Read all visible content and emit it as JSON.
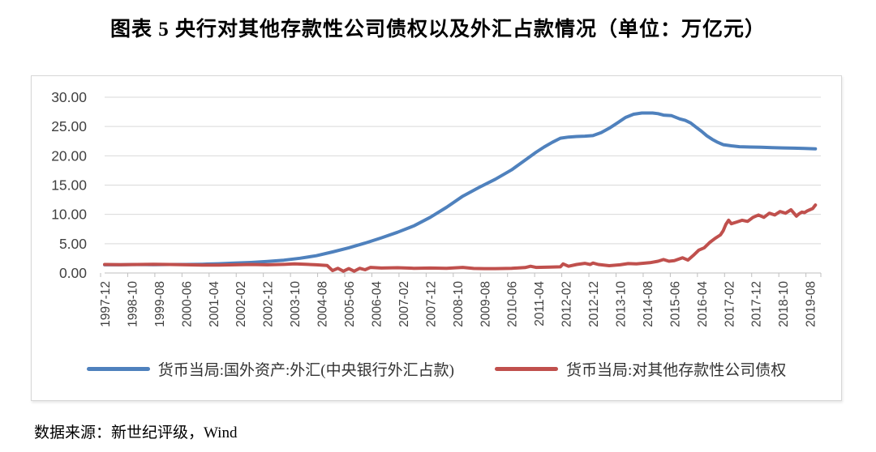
{
  "title": "图表 5  央行对其他存款性公司债权以及外汇占款情况（单位：万亿元）",
  "source_note": "数据来源：新世纪评级，Wind",
  "colors": {
    "series_fx_blue": "#4f81bd",
    "series_claims_red": "#c0504d",
    "gridline": "#d9d9d9",
    "axis_line": "#bfbfbf",
    "axis_label": "#404040"
  },
  "chart_data": {
    "type": "line",
    "title": "图表 5  央行对其他存款性公司债权以及外汇占款情况（单位：万亿元）",
    "xlabel": "",
    "ylabel": "",
    "unit": "万亿元",
    "ylim": [
      0,
      30
    ],
    "ytick_step": 5,
    "ytick_labels": [
      "0.00",
      "5.00",
      "10.00",
      "15.00",
      "20.00",
      "25.00",
      "30.00"
    ],
    "grid": "horizontal",
    "legend_position": "bottom",
    "x_axis_type": "monthly-categories",
    "x_start_label": "1997-12",
    "x_domain_months": [
      0,
      264
    ],
    "x_tick_interval_months": 10,
    "x_tick_labels": [
      "1997-12",
      "1998-10",
      "1999-08",
      "2000-06",
      "2001-04",
      "2002-02",
      "2002-12",
      "2003-10",
      "2004-08",
      "2005-06",
      "2006-04",
      "2007-02",
      "2007-12",
      "2008-10",
      "2009-08",
      "2010-06",
      "2011-04",
      "2012-02",
      "2012-12",
      "2013-10",
      "2014-08",
      "2015-06",
      "2016-04",
      "2017-02",
      "2017-12",
      "2018-10",
      "2019-08"
    ],
    "series": [
      {
        "name": "货币当局:国外资产:外汇(中央银行外汇占款)",
        "color": "#4f81bd",
        "points": [
          [
            0,
            1.4
          ],
          [
            6,
            1.4
          ],
          [
            12,
            1.45
          ],
          [
            18,
            1.43
          ],
          [
            24,
            1.45
          ],
          [
            30,
            1.45
          ],
          [
            36,
            1.5
          ],
          [
            42,
            1.57
          ],
          [
            48,
            1.68
          ],
          [
            54,
            1.8
          ],
          [
            60,
            1.97
          ],
          [
            66,
            2.18
          ],
          [
            72,
            2.52
          ],
          [
            78,
            2.95
          ],
          [
            84,
            3.6
          ],
          [
            90,
            4.3
          ],
          [
            96,
            5.1
          ],
          [
            102,
            6.0
          ],
          [
            108,
            6.95
          ],
          [
            114,
            8.05
          ],
          [
            120,
            9.5
          ],
          [
            126,
            11.2
          ],
          [
            132,
            13.1
          ],
          [
            138,
            14.6
          ],
          [
            144,
            16.0
          ],
          [
            150,
            17.6
          ],
          [
            153,
            18.6
          ],
          [
            156,
            19.6
          ],
          [
            159,
            20.6
          ],
          [
            162,
            21.5
          ],
          [
            165,
            22.3
          ],
          [
            168,
            23.0
          ],
          [
            171,
            23.2
          ],
          [
            174,
            23.3
          ],
          [
            177,
            23.35
          ],
          [
            180,
            23.45
          ],
          [
            183,
            23.95
          ],
          [
            186,
            24.7
          ],
          [
            189,
            25.6
          ],
          [
            192,
            26.55
          ],
          [
            195,
            27.1
          ],
          [
            198,
            27.3
          ],
          [
            202,
            27.3
          ],
          [
            204,
            27.2
          ],
          [
            206,
            26.95
          ],
          [
            209,
            26.85
          ],
          [
            212,
            26.3
          ],
          [
            214,
            26.05
          ],
          [
            216,
            25.6
          ],
          [
            218,
            24.9
          ],
          [
            220,
            24.2
          ],
          [
            222,
            23.4
          ],
          [
            224,
            22.8
          ],
          [
            226,
            22.3
          ],
          [
            228,
            21.9
          ],
          [
            231,
            21.7
          ],
          [
            234,
            21.55
          ],
          [
            238,
            21.5
          ],
          [
            242,
            21.45
          ],
          [
            246,
            21.4
          ],
          [
            250,
            21.35
          ],
          [
            254,
            21.3
          ],
          [
            258,
            21.25
          ],
          [
            262,
            21.2
          ]
        ]
      },
      {
        "name": "货币当局:对其他存款性公司债权",
        "color": "#c0504d",
        "points": [
          [
            0,
            1.45
          ],
          [
            6,
            1.42
          ],
          [
            12,
            1.45
          ],
          [
            18,
            1.5
          ],
          [
            24,
            1.45
          ],
          [
            30,
            1.4
          ],
          [
            36,
            1.36
          ],
          [
            42,
            1.35
          ],
          [
            48,
            1.4
          ],
          [
            54,
            1.45
          ],
          [
            60,
            1.4
          ],
          [
            66,
            1.47
          ],
          [
            70,
            1.55
          ],
          [
            74,
            1.48
          ],
          [
            78,
            1.4
          ],
          [
            82,
            1.28
          ],
          [
            84,
            0.4
          ],
          [
            86,
            0.8
          ],
          [
            88,
            0.3
          ],
          [
            90,
            0.75
          ],
          [
            92,
            0.3
          ],
          [
            94,
            0.8
          ],
          [
            96,
            0.55
          ],
          [
            98,
            0.95
          ],
          [
            102,
            0.85
          ],
          [
            108,
            0.9
          ],
          [
            114,
            0.8
          ],
          [
            120,
            0.85
          ],
          [
            126,
            0.8
          ],
          [
            130,
            0.9
          ],
          [
            132,
            0.95
          ],
          [
            136,
            0.78
          ],
          [
            140,
            0.75
          ],
          [
            144,
            0.75
          ],
          [
            150,
            0.8
          ],
          [
            155,
            0.92
          ],
          [
            157,
            1.15
          ],
          [
            159,
            0.95
          ],
          [
            164,
            1.0
          ],
          [
            168,
            1.05
          ],
          [
            169,
            1.55
          ],
          [
            171,
            1.15
          ],
          [
            174,
            1.45
          ],
          [
            177,
            1.65
          ],
          [
            179,
            1.45
          ],
          [
            180,
            1.7
          ],
          [
            182,
            1.45
          ],
          [
            186,
            1.25
          ],
          [
            190,
            1.4
          ],
          [
            193,
            1.6
          ],
          [
            196,
            1.55
          ],
          [
            201,
            1.75
          ],
          [
            204,
            2.0
          ],
          [
            206,
            2.3
          ],
          [
            208,
            2.0
          ],
          [
            210,
            2.1
          ],
          [
            213,
            2.6
          ],
          [
            215,
            2.2
          ],
          [
            217,
            3.0
          ],
          [
            219,
            3.9
          ],
          [
            221,
            4.3
          ],
          [
            223,
            5.2
          ],
          [
            225,
            5.9
          ],
          [
            227,
            6.5
          ],
          [
            228,
            7.2
          ],
          [
            229,
            8.3
          ],
          [
            230,
            9.0
          ],
          [
            231,
            8.4
          ],
          [
            233,
            8.7
          ],
          [
            235,
            9.0
          ],
          [
            237,
            8.8
          ],
          [
            239,
            9.5
          ],
          [
            241,
            9.9
          ],
          [
            243,
            9.5
          ],
          [
            245,
            10.2
          ],
          [
            247,
            9.9
          ],
          [
            249,
            10.5
          ],
          [
            251,
            10.2
          ],
          [
            253,
            10.8
          ],
          [
            255,
            9.7
          ],
          [
            256,
            10.1
          ],
          [
            257,
            10.4
          ],
          [
            258,
            10.3
          ],
          [
            259,
            10.6
          ],
          [
            260,
            10.8
          ],
          [
            261,
            11.0
          ],
          [
            262,
            11.6
          ]
        ]
      }
    ]
  }
}
